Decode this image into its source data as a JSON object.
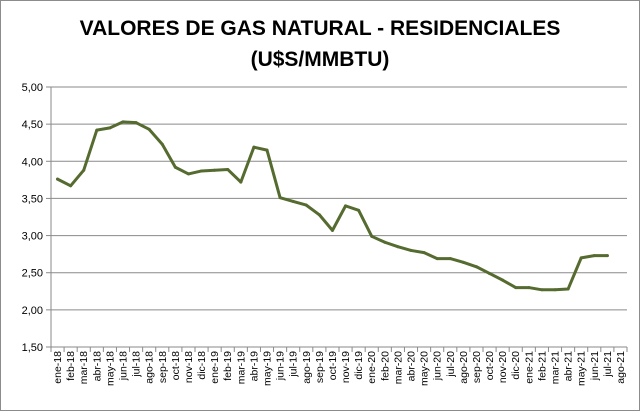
{
  "chart_data": {
    "type": "line",
    "title_lines": [
      "VALORES DE GAS NATURAL - RESIDENCIALES",
      "(U$S/MMBTU)"
    ],
    "xlabel": "",
    "ylabel": "",
    "ylim": [
      1.5,
      5.0
    ],
    "y_ticks": [
      "1,50",
      "2,00",
      "2,50",
      "3,00",
      "3,50",
      "4,00",
      "4,50",
      "5,00"
    ],
    "grid": true,
    "legend": "none",
    "line_color": "#556b2f",
    "categories": [
      "ene-18",
      "feb-18",
      "mar-18",
      "abr-18",
      "may-18",
      "jun-18",
      "jul-18",
      "ago-18",
      "sep-18",
      "oct-18",
      "nov-18",
      "dic-18",
      "ene-19",
      "feb-19",
      "mar-19",
      "abr-19",
      "may-19",
      "jun-19",
      "jul-19",
      "ago-19",
      "sep-19",
      "oct-19",
      "nov-19",
      "dic-19",
      "ene-20",
      "feb-20",
      "mar-20",
      "abr-20",
      "may-20",
      "jun-20",
      "jul-20",
      "ago-20",
      "sep-20",
      "oct-20",
      "nov-20",
      "dic-20",
      "ene-21",
      "feb-21",
      "mar-21",
      "abr-21",
      "may-21",
      "jun-21",
      "jul-21",
      "ago-21"
    ],
    "series": [
      {
        "values": [
          3.76,
          3.67,
          3.88,
          4.42,
          4.45,
          4.53,
          4.52,
          4.43,
          4.23,
          3.92,
          3.83,
          3.87,
          3.88,
          3.89,
          3.72,
          4.19,
          4.15,
          3.51,
          3.46,
          3.41,
          3.28,
          3.07,
          3.4,
          3.34,
          2.99,
          2.91,
          2.85,
          2.8,
          2.77,
          2.69,
          2.69,
          2.64,
          2.58,
          2.49,
          2.4,
          2.3,
          2.3,
          2.27,
          2.27,
          2.28,
          2.7,
          2.73,
          2.73,
          null
        ]
      }
    ]
  }
}
